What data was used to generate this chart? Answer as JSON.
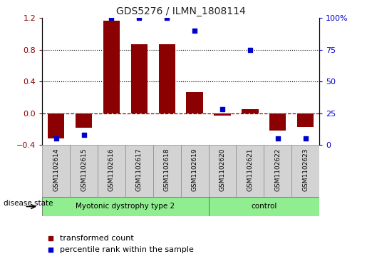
{
  "title": "GDS5276 / ILMN_1808114",
  "samples": [
    "GSM1102614",
    "GSM1102615",
    "GSM1102616",
    "GSM1102617",
    "GSM1102618",
    "GSM1102619",
    "GSM1102620",
    "GSM1102621",
    "GSM1102622",
    "GSM1102623"
  ],
  "transformed_count": [
    -0.32,
    -0.18,
    1.17,
    0.87,
    0.87,
    0.27,
    -0.03,
    0.05,
    -0.22,
    -0.17
  ],
  "percentile_rank": [
    5,
    8,
    100,
    100,
    100,
    90,
    28,
    75,
    5,
    5
  ],
  "disease_groups": [
    {
      "label": "Myotonic dystrophy type 2",
      "start": 0,
      "end": 6,
      "color": "#90EE90"
    },
    {
      "label": "control",
      "start": 6,
      "end": 10,
      "color": "#90EE90"
    }
  ],
  "ylim_left": [
    -0.4,
    1.2
  ],
  "ylim_right": [
    0,
    100
  ],
  "yticks_left": [
    -0.4,
    0.0,
    0.4,
    0.8,
    1.2
  ],
  "yticks_right": [
    0,
    25,
    50,
    75,
    100
  ],
  "ytick_labels_right": [
    "0",
    "25",
    "50",
    "75",
    "100%"
  ],
  "bar_color": "#8B0000",
  "dot_color": "#0000CD",
  "background_color": "#ffffff",
  "zero_line_color": "#8B0000",
  "grid_color": "#000000",
  "label_transformed": "transformed count",
  "label_percentile": "percentile rank within the sample",
  "disease_state_label": "disease state"
}
